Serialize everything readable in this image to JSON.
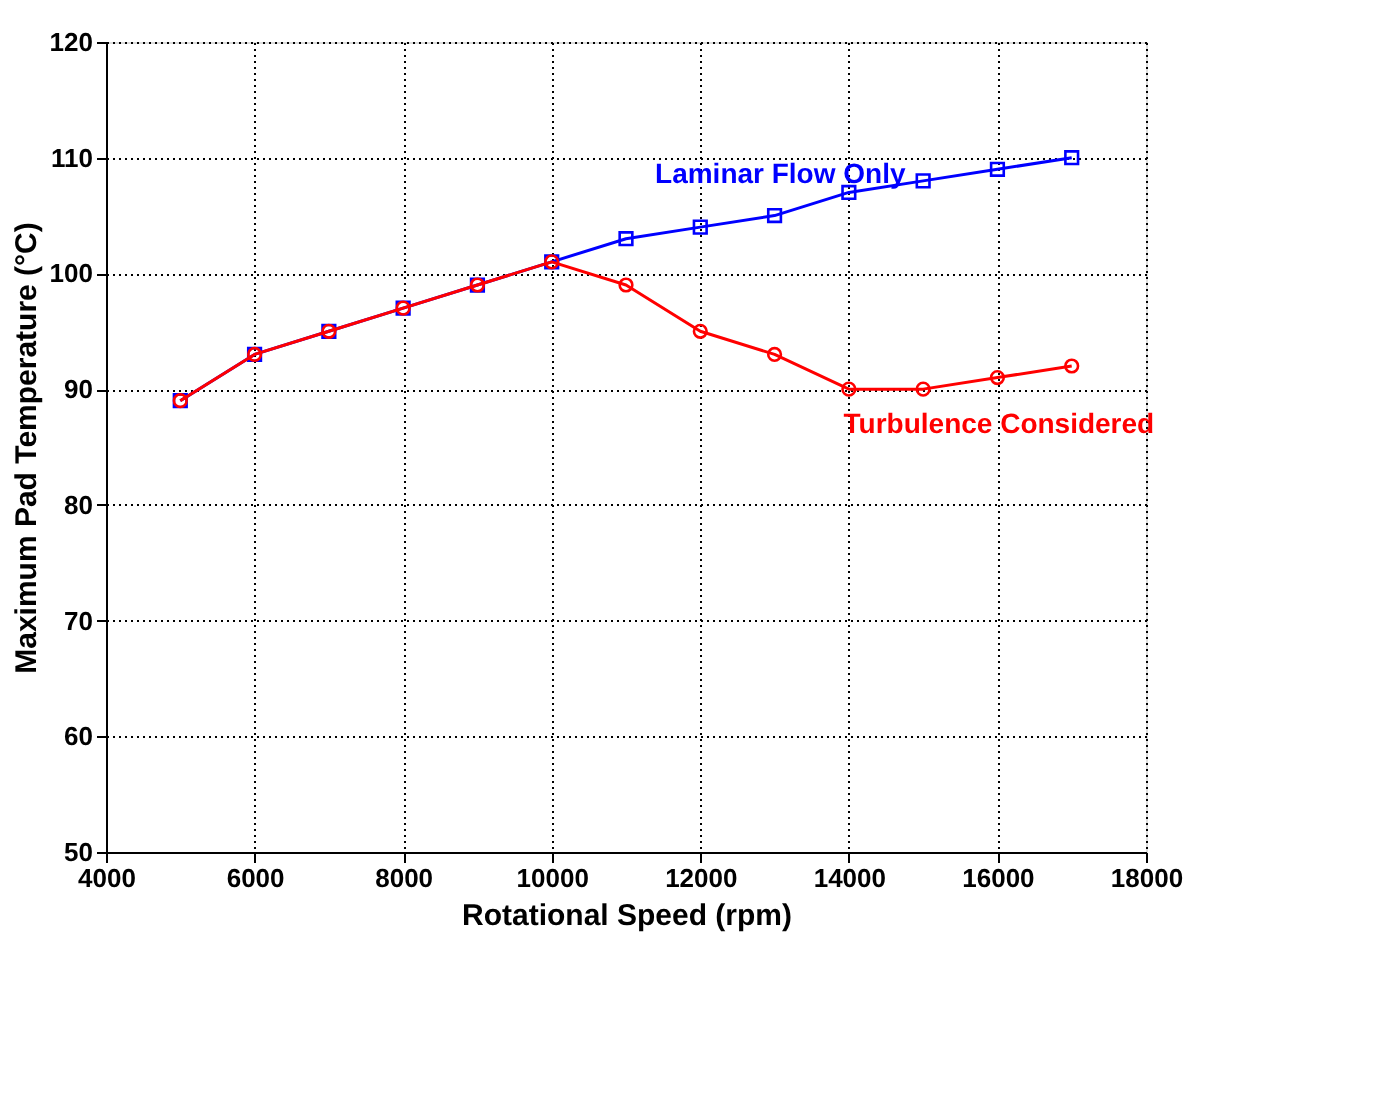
{
  "chart_data": {
    "type": "line",
    "xlabel": "Rotational Speed (rpm)",
    "ylabel": "Maximum Pad Temperature (°C)",
    "x": [
      5000,
      6000,
      7000,
      8000,
      9000,
      10000,
      11000,
      12000,
      13000,
      14000,
      15000,
      16000,
      17000
    ],
    "series": [
      {
        "name": "Laminar Flow Only",
        "color": "#0000ff",
        "marker": "square",
        "values": [
          89,
          93,
          95,
          97,
          99,
          101,
          103,
          104,
          105,
          107,
          108,
          109,
          110
        ]
      },
      {
        "name": "Turbulence Considered",
        "color": "#ff0000",
        "marker": "circle",
        "values": [
          89,
          93,
          95,
          97,
          99,
          101,
          99,
          95,
          93,
          90,
          90,
          91,
          92
        ]
      }
    ],
    "xlim": [
      4000,
      18000
    ],
    "xticks": [
      4000,
      6000,
      8000,
      10000,
      12000,
      14000,
      16000,
      18000
    ],
    "ylim": [
      50,
      120
    ],
    "yticks": [
      50,
      60,
      70,
      80,
      90,
      100,
      110,
      120
    ],
    "grid": true,
    "line_style": "solid"
  }
}
